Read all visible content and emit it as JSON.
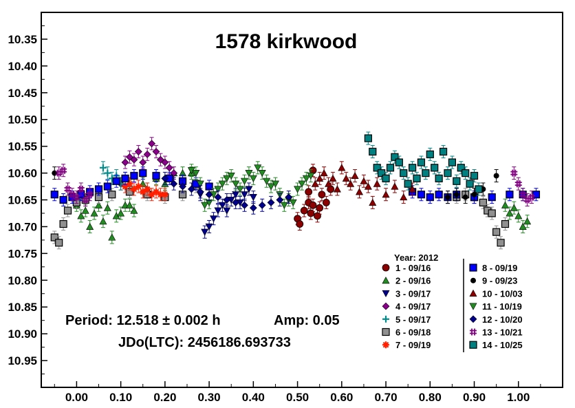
{
  "chart_data": {
    "type": "scatter",
    "title": "1578 kirkwood",
    "xlabel": "",
    "ylabel": "",
    "xlim": [
      -0.08,
      1.1
    ],
    "ylim": [
      10.3,
      11.0
    ],
    "y_inverted": true,
    "x_ticks": [
      "0.00",
      "0.10",
      "0.20",
      "0.30",
      "0.40",
      "0.50",
      "0.60",
      "0.70",
      "0.80",
      "0.90",
      "1.00"
    ],
    "y_ticks": [
      "10.35",
      "10.40",
      "10.45",
      "10.50",
      "10.55",
      "10.60",
      "10.65",
      "10.70",
      "10.75",
      "10.80",
      "10.85",
      "10.90",
      "10.95"
    ],
    "grid": false,
    "legend_title": "Year: 2012",
    "legend_position": "bottom-right",
    "annotations": {
      "period": "Period: 12.518 ± 0.002 h",
      "amp": "Amp: 0.05",
      "jd": "JDo(LTC): 2456186.693733"
    },
    "series": [
      {
        "name": "1 - 09/16",
        "marker": "circle",
        "color": "#8b0000",
        "points": [
          [
            0.5,
            10.685
          ],
          [
            0.505,
            10.695
          ],
          [
            0.515,
            10.67
          ],
          [
            0.525,
            10.655
          ],
          [
            0.53,
            10.675
          ],
          [
            0.535,
            10.66
          ],
          [
            0.545,
            10.68
          ],
          [
            0.55,
            10.665
          ],
          [
            0.555,
            10.64
          ],
          [
            0.565,
            10.655
          ],
          [
            0.575,
            10.63
          ],
          [
            0.535,
            10.595
          ],
          [
            0.525,
            10.635
          ]
        ]
      },
      {
        "name": "2 - 09/16",
        "marker": "triangle-up",
        "color": "#228b22",
        "points": [
          [
            0.0,
            10.66
          ],
          [
            0.01,
            10.68
          ],
          [
            0.02,
            10.67
          ],
          [
            0.03,
            10.7
          ],
          [
            0.04,
            10.675
          ],
          [
            0.05,
            10.66
          ],
          [
            0.06,
            10.69
          ],
          [
            0.07,
            10.665
          ],
          [
            0.08,
            10.72
          ],
          [
            0.09,
            10.68
          ],
          [
            0.1,
            10.675
          ],
          [
            0.11,
            10.66
          ],
          [
            0.12,
            10.66
          ],
          [
            0.13,
            10.67
          ],
          [
            0.15,
            10.62
          ],
          [
            0.16,
            10.63
          ],
          [
            0.18,
            10.61
          ],
          [
            0.2,
            10.62
          ],
          [
            0.22,
            10.6
          ],
          [
            0.24,
            10.6
          ],
          [
            0.26,
            10.6
          ],
          [
            0.97,
            10.66
          ],
          [
            0.98,
            10.675
          ],
          [
            0.99,
            10.665
          ],
          [
            1.0,
            10.68
          ],
          [
            1.01,
            10.7
          ],
          [
            1.02,
            10.69
          ]
        ]
      },
      {
        "name": "3 - 09/17",
        "marker": "triangle-down",
        "color": "#00008b",
        "points": [
          [
            0.28,
            10.64
          ],
          [
            0.29,
            10.71
          ],
          [
            0.3,
            10.7
          ],
          [
            0.31,
            10.685
          ],
          [
            0.32,
            10.67
          ],
          [
            0.33,
            10.66
          ],
          [
            0.34,
            10.67
          ],
          [
            0.35,
            10.65
          ],
          [
            0.36,
            10.64
          ],
          [
            0.37,
            10.655
          ],
          [
            0.38,
            10.64
          ],
          [
            0.39,
            10.63
          ],
          [
            0.4,
            10.645
          ]
        ]
      },
      {
        "name": "4 - 09/17",
        "marker": "diamond",
        "color": "#8b008b",
        "points": [
          [
            0.1,
            10.62
          ],
          [
            0.11,
            10.58
          ],
          [
            0.12,
            10.57
          ],
          [
            0.13,
            10.575
          ],
          [
            0.14,
            10.56
          ],
          [
            0.15,
            10.58
          ],
          [
            0.16,
            10.565
          ],
          [
            0.17,
            10.545
          ],
          [
            0.18,
            10.56
          ],
          [
            0.19,
            10.575
          ],
          [
            0.2,
            10.58
          ],
          [
            0.21,
            10.59
          ],
          [
            0.22,
            10.6
          ]
        ]
      },
      {
        "name": "5 - 09/17",
        "marker": "plus",
        "color": "#008b8b",
        "points": [
          [
            0.06,
            10.59
          ],
          [
            0.07,
            10.6
          ],
          [
            0.08,
            10.61
          ],
          [
            0.09,
            10.605
          ],
          [
            0.1,
            10.62
          ],
          [
            0.11,
            10.61
          ],
          [
            0.12,
            10.625
          ]
        ]
      },
      {
        "name": "6 - 09/18",
        "marker": "square",
        "color": "#909090",
        "points": [
          [
            -0.05,
            10.72
          ],
          [
            -0.04,
            10.73
          ],
          [
            -0.03,
            10.695
          ],
          [
            -0.02,
            10.67
          ],
          [
            0.0,
            10.655
          ],
          [
            0.02,
            10.65
          ],
          [
            0.05,
            10.645
          ],
          [
            0.08,
            10.64
          ],
          [
            0.12,
            10.635
          ],
          [
            0.16,
            10.64
          ],
          [
            0.2,
            10.645
          ],
          [
            0.24,
            10.64
          ],
          [
            0.27,
            10.625
          ],
          [
            0.86,
            10.645
          ],
          [
            0.88,
            10.64
          ],
          [
            0.9,
            10.645
          ],
          [
            0.92,
            10.655
          ],
          [
            0.93,
            10.67
          ],
          [
            0.94,
            10.675
          ],
          [
            0.95,
            10.71
          ],
          [
            0.96,
            10.73
          ],
          [
            0.97,
            10.695
          ]
        ]
      },
      {
        "name": "7 - 09/19",
        "marker": "star",
        "color": "#ff2000",
        "points": [
          [
            0.11,
            10.625
          ],
          [
            0.12,
            10.62
          ],
          [
            0.13,
            10.63
          ],
          [
            0.14,
            10.625
          ],
          [
            0.15,
            10.635
          ],
          [
            0.16,
            10.63
          ],
          [
            0.17,
            10.64
          ],
          [
            0.18,
            10.635
          ],
          [
            0.19,
            10.64
          ],
          [
            0.2,
            10.64
          ]
        ]
      },
      {
        "name": "8 - 09/19",
        "marker": "square",
        "color": "#0000ff",
        "points": [
          [
            -0.05,
            10.64
          ],
          [
            -0.03,
            10.65
          ],
          [
            -0.01,
            10.645
          ],
          [
            0.01,
            10.64
          ],
          [
            0.03,
            10.635
          ],
          [
            0.05,
            10.63
          ],
          [
            0.07,
            10.625
          ],
          [
            0.09,
            10.615
          ],
          [
            0.11,
            10.61
          ],
          [
            0.13,
            10.605
          ],
          [
            0.15,
            10.6
          ],
          [
            0.18,
            10.605
          ],
          [
            0.21,
            10.61
          ],
          [
            0.24,
            10.615
          ],
          [
            0.27,
            10.62
          ],
          [
            0.3,
            10.625
          ],
          [
            0.76,
            10.635
          ],
          [
            0.78,
            10.64
          ],
          [
            0.8,
            10.645
          ],
          [
            0.82,
            10.64
          ],
          [
            0.84,
            10.645
          ],
          [
            0.86,
            10.64
          ],
          [
            0.9,
            10.645
          ],
          [
            0.94,
            10.645
          ],
          [
            0.98,
            10.64
          ],
          [
            1.01,
            10.64
          ],
          [
            1.04,
            10.64
          ]
        ]
      },
      {
        "name": "9 - 09/23",
        "marker": "dot",
        "color": "#000000",
        "points": [
          [
            -0.05,
            10.6
          ],
          [
            0.84,
            10.645
          ],
          [
            0.86,
            10.64
          ],
          [
            0.88,
            10.645
          ],
          [
            0.9,
            10.64
          ],
          [
            0.92,
            10.63
          ],
          [
            0.95,
            10.605
          ]
        ]
      },
      {
        "name": "10 - 10/03",
        "marker": "triangle-up",
        "color": "#8b0000",
        "points": [
          [
            0.54,
            10.62
          ],
          [
            0.55,
            10.61
          ],
          [
            0.56,
            10.6
          ],
          [
            0.57,
            10.62
          ],
          [
            0.58,
            10.61
          ],
          [
            0.59,
            10.63
          ],
          [
            0.6,
            10.59
          ],
          [
            0.61,
            10.61
          ],
          [
            0.62,
            10.62
          ],
          [
            0.63,
            10.605
          ],
          [
            0.64,
            10.635
          ],
          [
            0.65,
            10.615
          ],
          [
            0.66,
            10.625
          ],
          [
            0.67,
            10.655
          ],
          [
            0.68,
            10.62
          ],
          [
            0.7,
            10.64
          ],
          [
            0.72,
            10.625
          ],
          [
            0.74,
            10.645
          ],
          [
            0.76,
            10.63
          ]
        ]
      },
      {
        "name": "11 - 10/19",
        "marker": "triangle-down",
        "color": "#228b22",
        "points": [
          [
            0.26,
            10.595
          ],
          [
            0.27,
            10.6
          ],
          [
            0.28,
            10.62
          ],
          [
            0.29,
            10.66
          ],
          [
            0.3,
            10.655
          ],
          [
            0.31,
            10.64
          ],
          [
            0.32,
            10.63
          ],
          [
            0.33,
            10.62
          ],
          [
            0.34,
            10.61
          ],
          [
            0.35,
            10.605
          ],
          [
            0.36,
            10.62
          ],
          [
            0.37,
            10.63
          ],
          [
            0.38,
            10.615
          ],
          [
            0.39,
            10.6
          ],
          [
            0.4,
            10.61
          ],
          [
            0.41,
            10.59
          ],
          [
            0.42,
            10.6
          ],
          [
            0.43,
            10.615
          ],
          [
            0.44,
            10.625
          ],
          [
            0.45,
            10.62
          ],
          [
            0.46,
            10.64
          ],
          [
            0.47,
            10.66
          ],
          [
            0.48,
            10.65
          ],
          [
            0.49,
            10.655
          ],
          [
            0.5,
            10.63
          ],
          [
            0.51,
            10.62
          ],
          [
            0.52,
            10.61
          ],
          [
            0.53,
            10.605
          ]
        ]
      },
      {
        "name": "12 - 10/20",
        "marker": "diamond",
        "color": "#00008b",
        "points": [
          [
            0.2,
            10.61
          ],
          [
            0.22,
            10.62
          ],
          [
            0.24,
            10.625
          ],
          [
            0.26,
            10.63
          ],
          [
            0.28,
            10.635
          ],
          [
            0.3,
            10.64
          ],
          [
            0.32,
            10.645
          ],
          [
            0.34,
            10.65
          ],
          [
            0.36,
            10.655
          ],
          [
            0.38,
            10.66
          ],
          [
            0.4,
            10.665
          ],
          [
            0.42,
            10.66
          ],
          [
            0.44,
            10.655
          ],
          [
            0.46,
            10.65
          ],
          [
            0.48,
            10.645
          ]
        ]
      },
      {
        "name": "13 - 10/21",
        "marker": "hash",
        "color": "#800080",
        "points": [
          [
            -0.04,
            10.6
          ],
          [
            -0.03,
            10.595
          ],
          [
            -0.02,
            10.63
          ],
          [
            -0.01,
            10.64
          ],
          [
            0.0,
            10.645
          ],
          [
            0.01,
            10.63
          ],
          [
            0.02,
            10.65
          ],
          [
            0.03,
            10.64
          ],
          [
            0.99,
            10.6
          ],
          [
            1.0,
            10.62
          ],
          [
            1.01,
            10.64
          ],
          [
            1.02,
            10.65
          ],
          [
            1.03,
            10.645
          ]
        ]
      },
      {
        "name": "14 - 10/25",
        "marker": "square",
        "color": "#008080",
        "points": [
          [
            0.66,
            10.535
          ],
          [
            0.67,
            10.56
          ],
          [
            0.68,
            10.59
          ],
          [
            0.69,
            10.6
          ],
          [
            0.7,
            10.61
          ],
          [
            0.71,
            10.59
          ],
          [
            0.72,
            10.57
          ],
          [
            0.73,
            10.58
          ],
          [
            0.74,
            10.6
          ],
          [
            0.75,
            10.62
          ],
          [
            0.76,
            10.59
          ],
          [
            0.77,
            10.61
          ],
          [
            0.78,
            10.58
          ],
          [
            0.79,
            10.6
          ],
          [
            0.8,
            10.565
          ],
          [
            0.81,
            10.59
          ],
          [
            0.82,
            10.61
          ],
          [
            0.83,
            10.56
          ],
          [
            0.84,
            10.6
          ],
          [
            0.85,
            10.58
          ],
          [
            0.86,
            10.615
          ],
          [
            0.87,
            10.59
          ],
          [
            0.88,
            10.6
          ],
          [
            0.89,
            10.62
          ],
          [
            0.9,
            10.605
          ],
          [
            0.91,
            10.63
          ]
        ]
      }
    ]
  }
}
